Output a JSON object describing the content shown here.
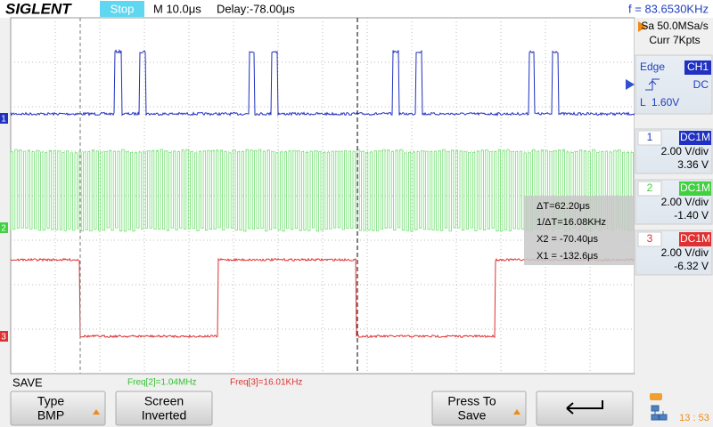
{
  "header": {
    "brand": "SIGLENT",
    "status": "Stop",
    "timebase": "M 10.0μs",
    "delay": "Delay:-78.00μs",
    "frequency": "f = 83.6530KHz"
  },
  "acquisition": {
    "sample_rate": "Sa 50.0MSa/s",
    "memory": "Curr 7Kpts"
  },
  "trigger": {
    "type": "Edge",
    "source": "CH1",
    "coupling": "DC",
    "level": "L  1.60V"
  },
  "channels": [
    {
      "number": "1",
      "coupling": "DC1M",
      "scale": "2.00 V/div",
      "offset": "3.36 V"
    },
    {
      "number": "2",
      "coupling": "DC1M",
      "scale": "2.00 V/div",
      "offset": "-1.40 V"
    },
    {
      "number": "3",
      "coupling": "DC1M",
      "scale": "2.00 V/div",
      "offset": "-6.32 V"
    }
  ],
  "cursors": {
    "delta": "ΔT=62.20μs",
    "inverse": "1/ΔT=16.08KHz",
    "x2": "X2 = -70.40μs",
    "x1": "X1 = -132.6μs"
  },
  "menu": {
    "title": "SAVE",
    "freq2": "Freq[2]=1.04MHz",
    "freq3": "Freq[3]=16.01KHz",
    "buttons": [
      {
        "label": "Type",
        "value": "BMP"
      },
      {
        "label": "Screen",
        "value": "Inverted"
      },
      {
        "label": "Press To",
        "value": "Save"
      }
    ]
  },
  "clock": "13 : 53"
}
